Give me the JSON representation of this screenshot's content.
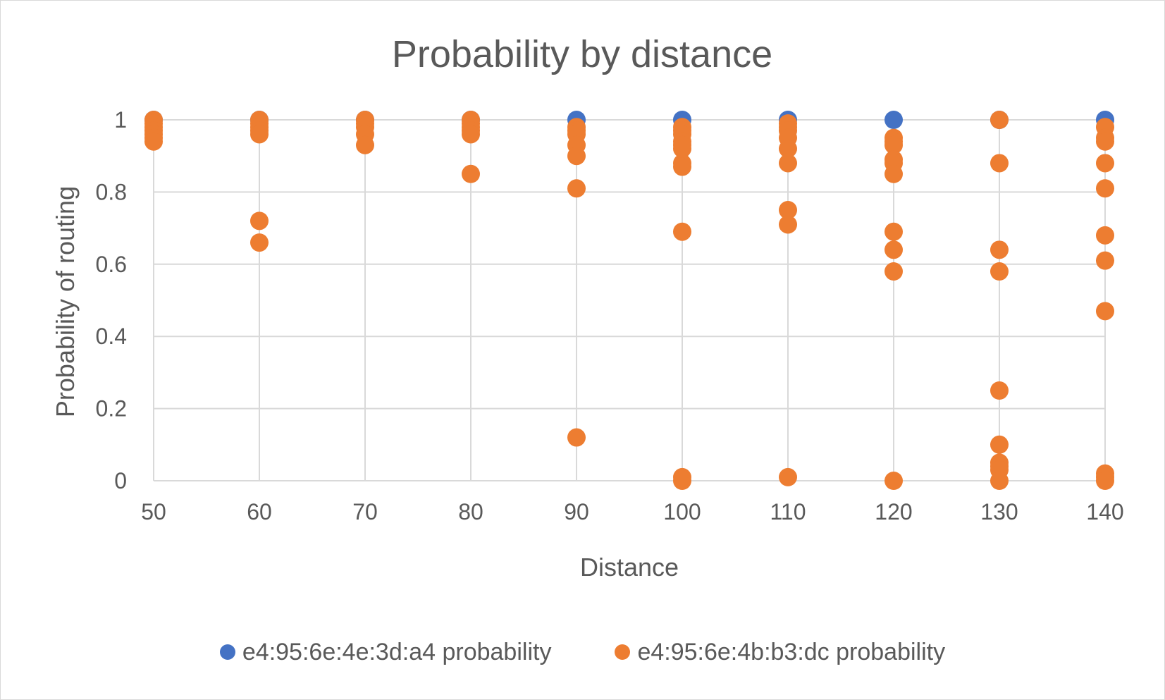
{
  "chart_data": {
    "type": "scatter",
    "title": "Probability by distance",
    "xlabel": "Distance",
    "ylabel": "Probability of routing",
    "xlim": [
      50,
      140
    ],
    "ylim": [
      0,
      1
    ],
    "xticks": [
      "50",
      "60",
      "70",
      "80",
      "90",
      "100",
      "110",
      "120",
      "130",
      "140"
    ],
    "yticks": [
      "0",
      "0.2",
      "0.4",
      "0.6",
      "0.8",
      "1"
    ],
    "grid": true,
    "legend_position": "bottom",
    "series": [
      {
        "name": "e4:95:6e:4e:3d:a4 probability",
        "color": "#4472C4",
        "points": [
          [
            50,
            1
          ],
          [
            60,
            1
          ],
          [
            70,
            1
          ],
          [
            80,
            1
          ],
          [
            90,
            1
          ],
          [
            100,
            1
          ],
          [
            110,
            1
          ],
          [
            120,
            1
          ],
          [
            130,
            1
          ],
          [
            140,
            1
          ]
        ]
      },
      {
        "name": "e4:95:6e:4b:b3:dc probability",
        "color": "#ED7D31",
        "points": [
          [
            50,
            1
          ],
          [
            50,
            0.99
          ],
          [
            50,
            0.98
          ],
          [
            50,
            0.97
          ],
          [
            50,
            0.96
          ],
          [
            50,
            0.95
          ],
          [
            50,
            0.94
          ],
          [
            60,
            1
          ],
          [
            60,
            0.99
          ],
          [
            60,
            0.98
          ],
          [
            60,
            0.97
          ],
          [
            60,
            0.96
          ],
          [
            60,
            0.72
          ],
          [
            60,
            0.66
          ],
          [
            70,
            1
          ],
          [
            70,
            0.99
          ],
          [
            70,
            0.98
          ],
          [
            70,
            0.96
          ],
          [
            70,
            0.93
          ],
          [
            80,
            1
          ],
          [
            80,
            0.99
          ],
          [
            80,
            0.98
          ],
          [
            80,
            0.97
          ],
          [
            80,
            0.96
          ],
          [
            80,
            0.85
          ],
          [
            90,
            0.98
          ],
          [
            90,
            0.97
          ],
          [
            90,
            0.96
          ],
          [
            90,
            0.93
          ],
          [
            90,
            0.9
          ],
          [
            90,
            0.81
          ],
          [
            90,
            0.12
          ],
          [
            100,
            0.98
          ],
          [
            100,
            0.97
          ],
          [
            100,
            0.96
          ],
          [
            100,
            0.94
          ],
          [
            100,
            0.93
          ],
          [
            100,
            0.92
          ],
          [
            100,
            0.88
          ],
          [
            100,
            0.87
          ],
          [
            100,
            0.69
          ],
          [
            100,
            0.01
          ],
          [
            100,
            0.0
          ],
          [
            110,
            0.99
          ],
          [
            110,
            0.98
          ],
          [
            110,
            0.97
          ],
          [
            110,
            0.95
          ],
          [
            110,
            0.92
          ],
          [
            110,
            0.88
          ],
          [
            110,
            0.75
          ],
          [
            110,
            0.71
          ],
          [
            110,
            0.01
          ],
          [
            120,
            0.95
          ],
          [
            120,
            0.94
          ],
          [
            120,
            0.93
          ],
          [
            120,
            0.89
          ],
          [
            120,
            0.88
          ],
          [
            120,
            0.85
          ],
          [
            120,
            0.69
          ],
          [
            120,
            0.64
          ],
          [
            120,
            0.58
          ],
          [
            120,
            0.0
          ],
          [
            130,
            1
          ],
          [
            130,
            0.88
          ],
          [
            130,
            0.64
          ],
          [
            130,
            0.58
          ],
          [
            130,
            0.25
          ],
          [
            130,
            0.1
          ],
          [
            130,
            0.05
          ],
          [
            130,
            0.04
          ],
          [
            130,
            0.03
          ],
          [
            130,
            0.0
          ],
          [
            140,
            0.98
          ],
          [
            140,
            0.95
          ],
          [
            140,
            0.94
          ],
          [
            140,
            0.88
          ],
          [
            140,
            0.81
          ],
          [
            140,
            0.68
          ],
          [
            140,
            0.61
          ],
          [
            140,
            0.47
          ],
          [
            140,
            0.02
          ],
          [
            140,
            0.01
          ],
          [
            140,
            0.0
          ]
        ]
      }
    ]
  }
}
